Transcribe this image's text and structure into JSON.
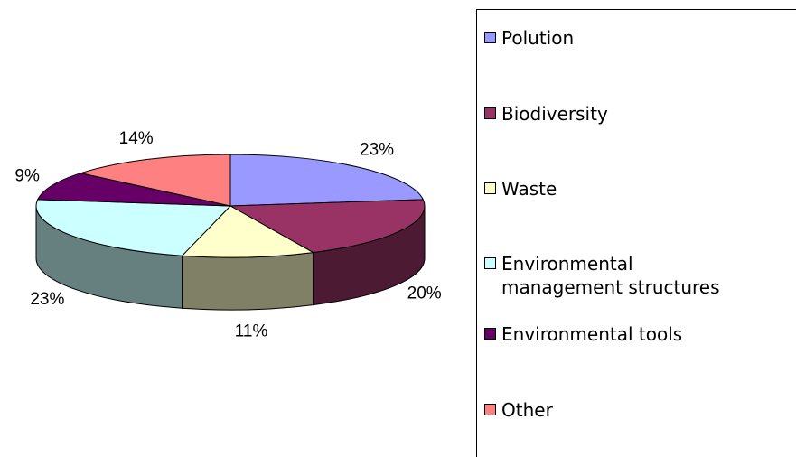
{
  "chart_data": {
    "type": "pie3d",
    "categories": [
      "Polution",
      "Biodiversity",
      "Waste",
      "Environmental management structures",
      "Environmental tools",
      "Other"
    ],
    "values": [
      23,
      20,
      11,
      23,
      9,
      14
    ],
    "value_labels": [
      "23%",
      "20%",
      "11%",
      "23%",
      "9%",
      "14%"
    ],
    "colors": [
      "#9999ff",
      "#993366",
      "#ffffcc",
      "#ccffff",
      "#660066",
      "#ff8080"
    ],
    "legend": "right"
  }
}
